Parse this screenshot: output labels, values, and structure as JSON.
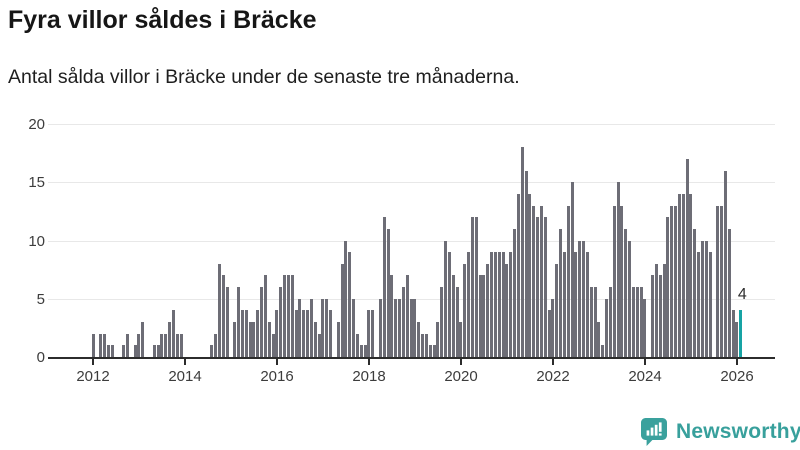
{
  "header": {
    "title": "Fyra villor såldes i Bräcke",
    "subtitle": "Antal sålda villor i Bräcke under de senaste tre månaderna."
  },
  "chart_data": {
    "type": "bar",
    "title": "Fyra villor såldes i Bräcke",
    "subtitle": "Antal sålda villor i Bräcke under de senaste tre månaderna.",
    "x_start": "2012-01",
    "x_step": "1 month",
    "values": [
      2,
      0,
      2,
      2,
      1,
      1,
      0,
      0,
      1,
      2,
      0,
      1,
      2,
      3,
      0,
      0,
      1,
      1,
      2,
      2,
      3,
      4,
      2,
      2,
      0,
      0,
      0,
      0,
      0,
      0,
      0,
      1,
      2,
      8,
      7,
      6,
      0,
      3,
      6,
      4,
      4,
      3,
      3,
      4,
      6,
      7,
      3,
      2,
      4,
      6,
      7,
      7,
      7,
      4,
      5,
      4,
      4,
      5,
      3,
      2,
      5,
      5,
      4,
      0,
      3,
      8,
      10,
      9,
      5,
      2,
      1,
      1,
      4,
      4,
      0,
      5,
      12,
      11,
      7,
      5,
      5,
      6,
      7,
      5,
      5,
      3,
      2,
      2,
      1,
      1,
      3,
      6,
      10,
      9,
      7,
      6,
      3,
      8,
      9,
      12,
      12,
      7,
      7,
      8,
      9,
      9,
      9,
      9,
      8,
      9,
      11,
      14,
      18,
      16,
      14,
      13,
      12,
      13,
      12,
      4,
      5,
      8,
      11,
      9,
      13,
      15,
      9,
      10,
      10,
      9,
      6,
      6,
      3,
      1,
      5,
      6,
      13,
      15,
      13,
      11,
      10,
      6,
      6,
      6,
      5,
      0,
      7,
      8,
      7,
      8,
      12,
      13,
      13,
      14,
      14,
      17,
      14,
      11,
      9,
      10,
      10,
      9,
      0,
      13,
      13,
      16,
      11,
      4,
      3,
      4
    ],
    "ylim": [
      0,
      20
    ],
    "y_ticks": [
      0,
      5,
      10,
      15,
      20
    ],
    "x_tick_labels": [
      "2012",
      "2014",
      "2016",
      "2018",
      "2020",
      "2022",
      "2024",
      "2026"
    ],
    "x_tick_step_months": 24,
    "grid": "horizontal",
    "legend": "none",
    "bar_color": "#6d6d76",
    "highlight": {
      "index": 169,
      "value": 4,
      "label": "4",
      "color": "#16a3a4"
    }
  },
  "footer": {
    "logo_text": "Newsworthy",
    "logo_color": "#3aa19d"
  }
}
